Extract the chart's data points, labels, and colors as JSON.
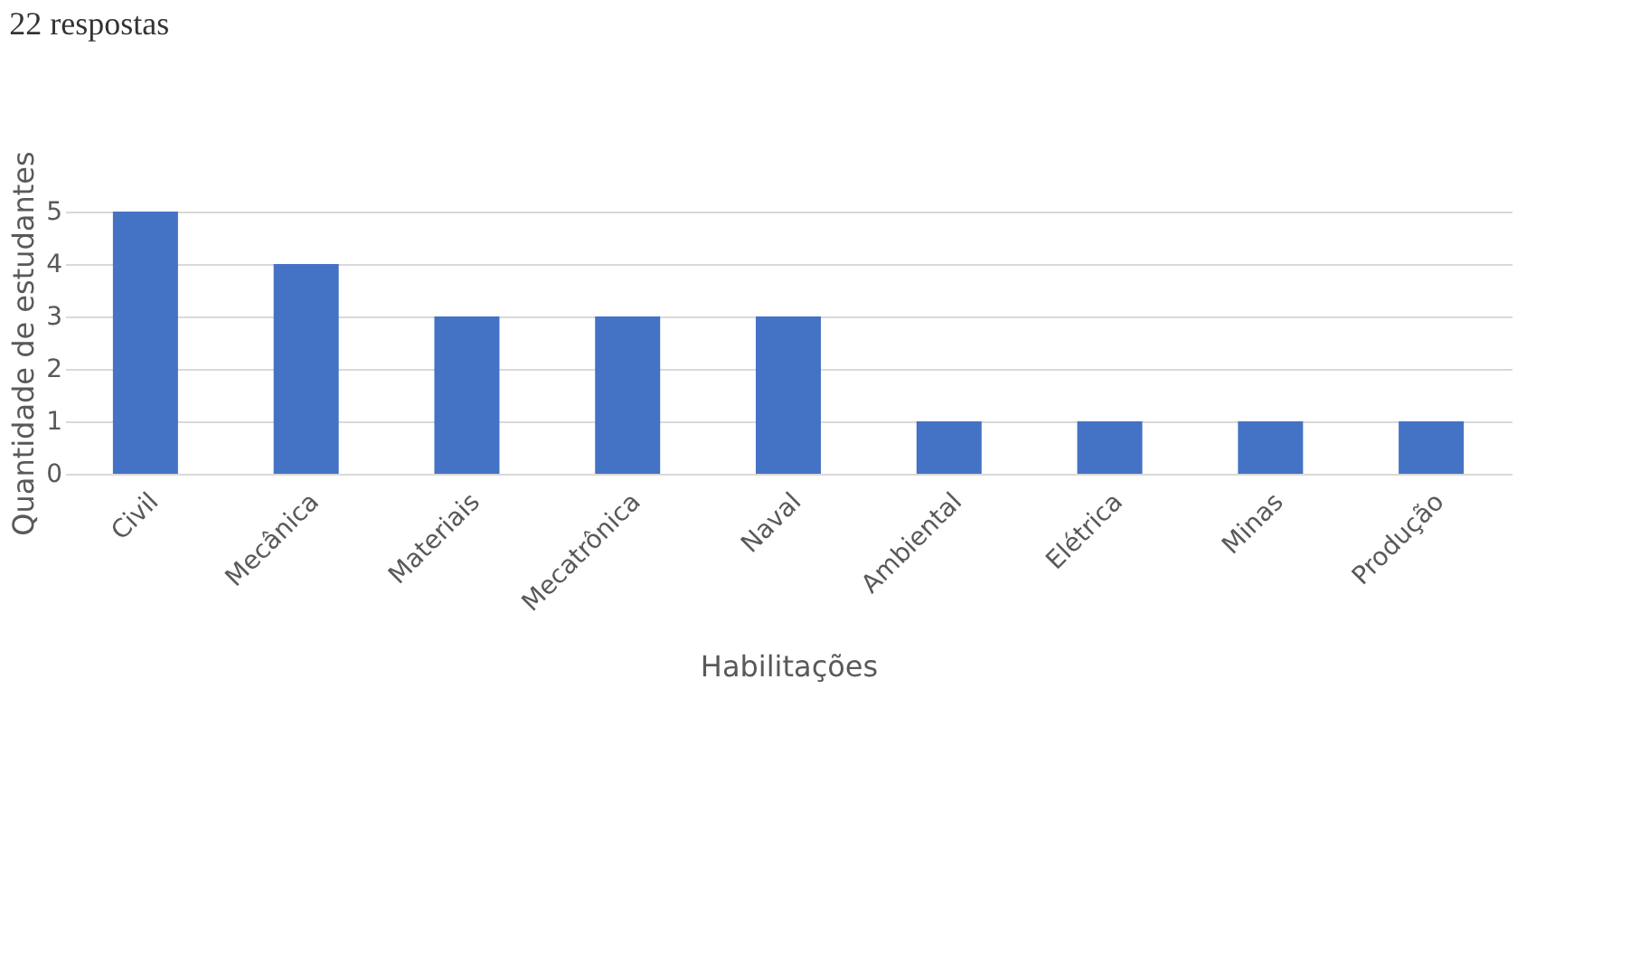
{
  "chart_data": {
    "type": "bar",
    "title": "22 respostas",
    "xlabel": "Habilitações",
    "ylabel": "Quantidade de estudantes",
    "categories": [
      "Civil",
      "Mecânica",
      "Materiais",
      "Mecatrônica",
      "Naval",
      "Ambiental",
      "Elétrica",
      "Minas",
      "Produção"
    ],
    "values": [
      5,
      4,
      3,
      3,
      3,
      1,
      1,
      1,
      1
    ],
    "color": "#4472c4",
    "ylim": [
      0,
      5
    ],
    "yticks": [
      0,
      1,
      2,
      3,
      4,
      5
    ],
    "grid": "y"
  }
}
